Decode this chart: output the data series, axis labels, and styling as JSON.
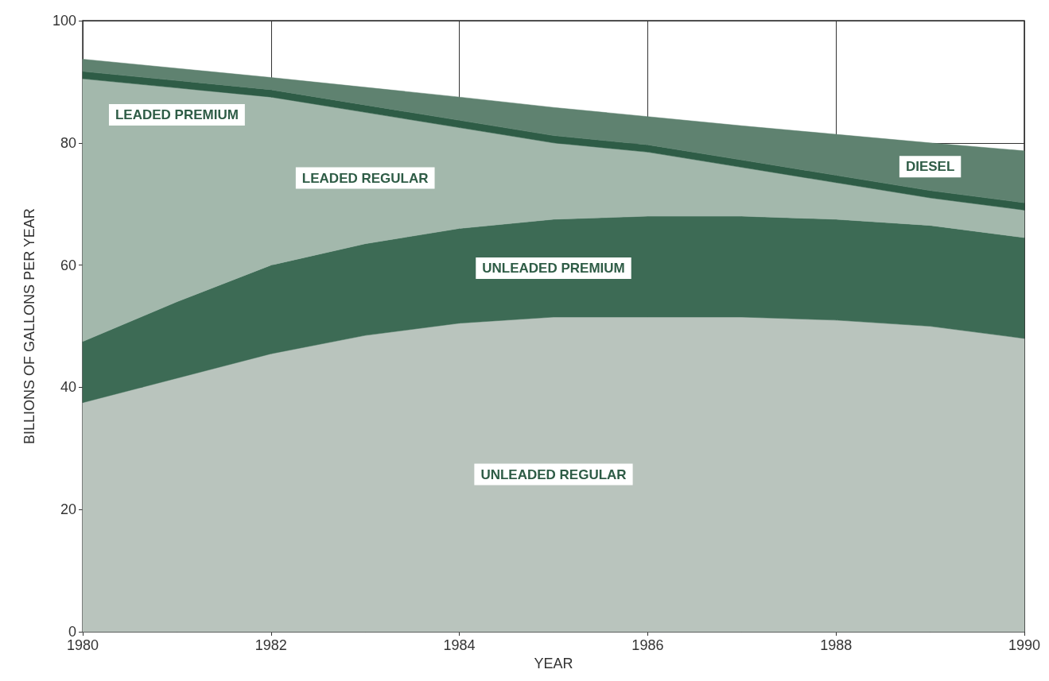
{
  "chart_data": {
    "type": "area",
    "stacked": true,
    "xlabel": "YEAR",
    "ylabel": "BILLIONS OF GALLONS PER YEAR",
    "x": [
      1980,
      1981,
      1982,
      1983,
      1984,
      1985,
      1986,
      1987,
      1988,
      1989,
      1990
    ],
    "xlim": [
      1980,
      1990
    ],
    "xticks": [
      1980,
      1982,
      1984,
      1986,
      1988,
      1990
    ],
    "ylim": [
      0,
      100
    ],
    "yticks": [
      0,
      20,
      40,
      60,
      80,
      100
    ],
    "grid": true,
    "legend": false,
    "series": [
      {
        "name": "UNLEADED REGULAR",
        "color": "#b9c4bd",
        "values": [
          37.5,
          41.5,
          45.5,
          48.5,
          50.5,
          51.5,
          51.5,
          51.5,
          51,
          50,
          48
        ]
      },
      {
        "name": "UNLEADED PREMIUM",
        "color": "#3d6b55",
        "values": [
          10,
          12.5,
          14.5,
          15,
          15.5,
          16,
          16.5,
          16.5,
          16.5,
          16.5,
          16.5
        ]
      },
      {
        "name": "LEADED REGULAR",
        "color": "#a3b8ac",
        "values": [
          43,
          35,
          27.5,
          21.5,
          16.5,
          12.5,
          10.5,
          8,
          6,
          4.5,
          4.5
        ]
      },
      {
        "name": "LEADED PREMIUM",
        "color": "#2e5c46",
        "values": [
          1.2,
          1.2,
          1.2,
          1.2,
          1.2,
          1.2,
          1.2,
          1.2,
          1.2,
          1.2,
          1.2
        ]
      },
      {
        "name": "DIESEL",
        "color": "#5f8270",
        "values": [
          2,
          2,
          2,
          2.9,
          3.8,
          4.6,
          4.6,
          5.6,
          6.7,
          7.8,
          8.5
        ]
      }
    ]
  }
}
